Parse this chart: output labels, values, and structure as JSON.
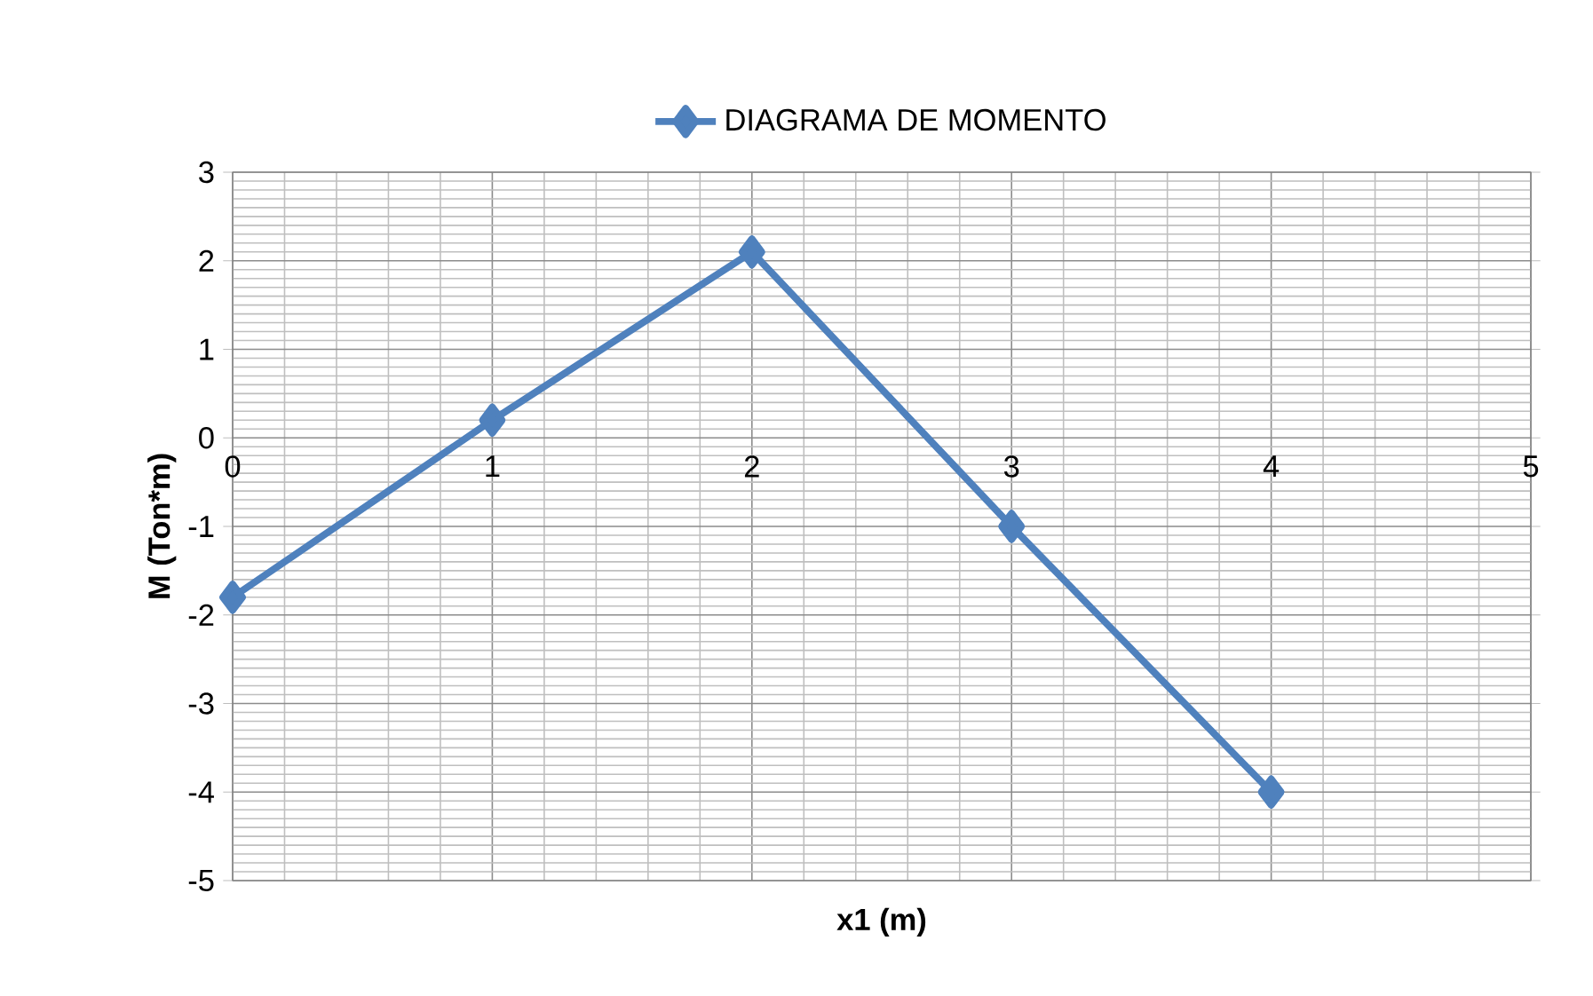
{
  "chart_data": {
    "type": "line",
    "xlabel": "x1 (m)",
    "ylabel": "M (Ton*m)",
    "x": [
      0,
      1,
      2,
      3,
      4
    ],
    "series": [
      {
        "name": "DIAGRAMA DE MOMENTO",
        "color": "#4f81bd",
        "values": [
          -1.8,
          0.2,
          2.1,
          -1.0,
          -4.0
        ]
      }
    ],
    "xlim": [
      0,
      5
    ],
    "xticks": [
      0,
      1,
      2,
      3,
      4,
      5
    ],
    "ylim": [
      -5,
      3
    ],
    "yticks": [
      -5,
      -4,
      -3,
      -2,
      -1,
      0,
      1,
      2,
      3
    ],
    "grid": true,
    "legend": "top",
    "marker": "diamond",
    "line_style": "solid"
  }
}
